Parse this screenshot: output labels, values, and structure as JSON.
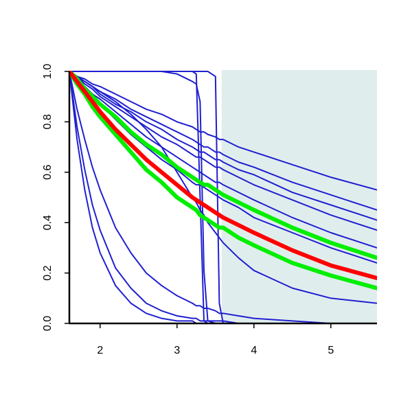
{
  "chart_data": {
    "type": "line",
    "xlim": [
      1.6,
      5.6
    ],
    "ylim": [
      0,
      1
    ],
    "xticks": [
      2,
      3,
      4,
      5
    ],
    "yticks": [
      {
        "value": 0,
        "label": "0.0"
      },
      0.2,
      0.4,
      0.6,
      0.8,
      {
        "value": 1,
        "label": "1.0"
      }
    ],
    "shaded_xrange": [
      3.58,
      5.6
    ],
    "shade_color": "#e0eded",
    "x": [
      1.6,
      1.7,
      1.8,
      1.9,
      2.0,
      2.2,
      2.4,
      2.6,
      2.8,
      3.0,
      3.2,
      3.25,
      3.3,
      3.35,
      3.4,
      3.5,
      3.55,
      3.6,
      3.8,
      4.0,
      4.5,
      5.0,
      5.6
    ],
    "series": [
      {
        "color": "#1f1fd0",
        "values": [
          1,
          0.98,
          0.97,
          0.95,
          0.94,
          0.91,
          0.88,
          0.85,
          0.83,
          0.8,
          0.78,
          0.77,
          0.76,
          0.76,
          0.75,
          0.74,
          0.73,
          0.73,
          0.7,
          0.68,
          0.63,
          0.58,
          0.53
        ]
      },
      {
        "color": "#1f1fd0",
        "values": [
          1,
          0.98,
          0.96,
          0.94,
          0.92,
          0.89,
          0.85,
          0.82,
          0.79,
          0.76,
          0.73,
          0.72,
          0.71,
          0.7,
          0.7,
          0.68,
          0.68,
          0.67,
          0.64,
          0.62,
          0.56,
          0.51,
          0.45
        ]
      },
      {
        "color": "#1f1fd0",
        "values": [
          1,
          0.98,
          0.96,
          0.94,
          0.91,
          0.87,
          0.84,
          0.8,
          0.77,
          0.73,
          0.7,
          0.69,
          0.68,
          0.68,
          0.67,
          0.65,
          0.65,
          0.64,
          0.61,
          0.59,
          0.52,
          0.47,
          0.41
        ]
      },
      {
        "color": "#1f1fd0",
        "values": [
          1,
          0.98,
          0.95,
          0.93,
          0.9,
          0.86,
          0.82,
          0.78,
          0.74,
          0.71,
          0.67,
          0.66,
          0.66,
          0.65,
          0.64,
          0.62,
          0.62,
          0.61,
          0.58,
          0.55,
          0.49,
          0.43,
          0.37
        ]
      },
      {
        "color": "#1f1fd0",
        "values": [
          1,
          0.97,
          0.94,
          0.91,
          0.89,
          0.84,
          0.79,
          0.74,
          0.7,
          0.66,
          0.62,
          0.61,
          0.6,
          0.59,
          0.58,
          0.56,
          0.56,
          0.55,
          0.52,
          0.49,
          0.42,
          0.36,
          0.3
        ]
      },
      {
        "color": "#1f1fd0",
        "values": [
          1,
          0.96,
          0.93,
          0.9,
          0.87,
          0.81,
          0.75,
          0.7,
          0.65,
          0.61,
          0.56,
          0.55,
          0.55,
          0.54,
          0.53,
          0.51,
          0.5,
          0.49,
          0.46,
          0.42,
          0.36,
          0.3,
          0.24
        ]
      },
      {
        "color": "#1f1fd0",
        "values": [
          1,
          0.73,
          0.53,
          0.38,
          0.28,
          0.15,
          0.08,
          0.04,
          0.02,
          0.01,
          0.01,
          0,
          0,
          0,
          0,
          0,
          0,
          0,
          0,
          0,
          0,
          0,
          0
        ]
      },
      {
        "color": "#1f1fd0",
        "values": [
          1,
          0.78,
          0.61,
          0.47,
          0.37,
          0.22,
          0.14,
          0.08,
          0.05,
          0.03,
          0.02,
          0.02,
          0.01,
          0.01,
          0.01,
          0.01,
          0.01,
          0.01,
          0,
          0,
          0,
          0,
          0
        ]
      },
      {
        "color": "#1f1fd0",
        "values": [
          1,
          0.85,
          0.73,
          0.62,
          0.53,
          0.38,
          0.28,
          0.2,
          0.15,
          0.11,
          0.08,
          0.07,
          0.07,
          0.06,
          0.06,
          0.05,
          0.04,
          0.04,
          0.03,
          0.02,
          0.01,
          0,
          0
        ]
      },
      {
        "color": "#1f1fd0",
        "values": [
          1,
          0.98,
          0.96,
          0.94,
          0.92,
          0.88,
          0.83,
          0.77,
          0.7,
          0.6,
          0.5,
          0.48,
          0.45,
          0.43,
          0.4,
          0.36,
          0.34,
          0.32,
          0.26,
          0.21,
          0.14,
          0.1,
          0.08
        ]
      },
      {
        "color": "#1f1fd0",
        "values": [
          1,
          1,
          1,
          1,
          1,
          1,
          1,
          1,
          1,
          1,
          1,
          0.99,
          0.5,
          0.01,
          0,
          0,
          0,
          0,
          0,
          0,
          0,
          0,
          0
        ]
      },
      {
        "color": "#1f1fd0",
        "values": [
          1,
          1,
          1,
          1,
          1,
          1,
          1,
          1,
          1,
          0.99,
          0.96,
          0.95,
          0.88,
          0.21,
          0.01,
          0,
          0,
          0,
          0,
          0,
          0,
          0,
          0
        ]
      },
      {
        "color": "#1f1fd0",
        "values": [
          1,
          1,
          1,
          1,
          1,
          1,
          1,
          1,
          1,
          1,
          1,
          1,
          1,
          1,
          1,
          0.98,
          0.08,
          0,
          0,
          0,
          0,
          0,
          0
        ]
      },
      {
        "color": "#00ee00",
        "values": [
          1,
          0.97,
          0.93,
          0.9,
          0.87,
          0.82,
          0.76,
          0.71,
          0.67,
          0.62,
          0.58,
          0.57,
          0.56,
          0.55,
          0.55,
          0.53,
          0.52,
          0.51,
          0.48,
          0.45,
          0.38,
          0.32,
          0.26
        ]
      },
      {
        "color": "#00ee00",
        "values": [
          1,
          0.95,
          0.91,
          0.86,
          0.82,
          0.75,
          0.68,
          0.61,
          0.56,
          0.5,
          0.46,
          0.45,
          0.43,
          0.42,
          0.41,
          0.39,
          0.38,
          0.38,
          0.34,
          0.31,
          0.24,
          0.19,
          0.14
        ]
      },
      {
        "color": "#ff0000",
        "values": [
          1,
          0.96,
          0.92,
          0.88,
          0.84,
          0.77,
          0.71,
          0.65,
          0.6,
          0.55,
          0.5,
          0.49,
          0.48,
          0.47,
          0.46,
          0.44,
          0.43,
          0.42,
          0.39,
          0.36,
          0.29,
          0.23,
          0.18
        ]
      }
    ]
  }
}
